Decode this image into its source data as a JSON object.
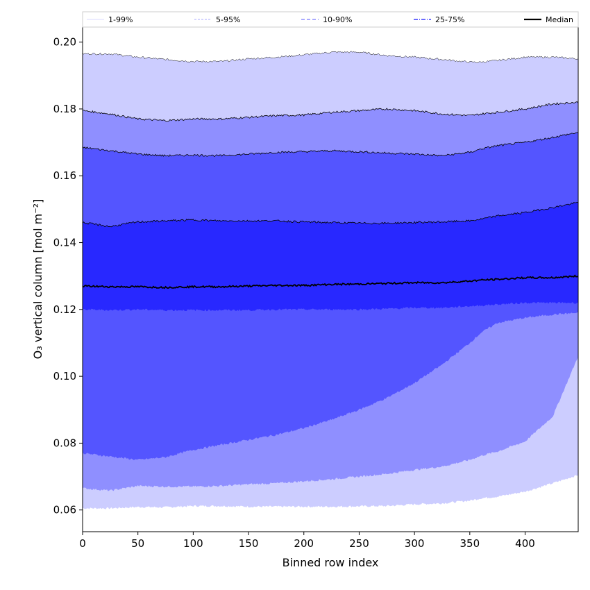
{
  "chart_data": {
    "type": "area",
    "title": "",
    "xlabel": "Binned row index",
    "ylabel": "O₃ vertical column [mol m⁻²]",
    "xlim": [
      0,
      448
    ],
    "ylim": [
      0.0535,
      0.2045
    ],
    "xticks": [
      0,
      50,
      100,
      150,
      200,
      250,
      300,
      350,
      400
    ],
    "yticks": [
      0.06,
      0.08,
      0.1,
      0.12,
      0.14,
      0.16,
      0.18,
      0.2
    ],
    "grid": false,
    "legend_position": "top",
    "x": [
      0,
      25,
      50,
      75,
      100,
      125,
      150,
      175,
      200,
      225,
      250,
      275,
      300,
      325,
      350,
      360,
      375,
      400,
      425,
      448
    ],
    "bands": [
      {
        "name": "1-99%",
        "color": "#cccdff",
        "lower": [
          0.0605,
          0.0605,
          0.0609,
          0.0608,
          0.0612,
          0.0612,
          0.061,
          0.061,
          0.061,
          0.061,
          0.0611,
          0.0612,
          0.0617,
          0.062,
          0.0628,
          0.0635,
          0.064,
          0.0655,
          0.068,
          0.0705
        ],
        "upper": [
          0.1965,
          0.1965,
          0.1955,
          0.1948,
          0.1942,
          0.1942,
          0.195,
          0.1955,
          0.1962,
          0.197,
          0.197,
          0.196,
          0.1955,
          0.1948,
          0.194,
          0.194,
          0.1945,
          0.1955,
          0.1955,
          0.195
        ]
      },
      {
        "name": "5-95%",
        "color": "#8f8fff",
        "lower": [
          0.0665,
          0.0658,
          0.0672,
          0.067,
          0.067,
          0.0672,
          0.0677,
          0.068,
          0.0686,
          0.0692,
          0.07,
          0.0708,
          0.072,
          0.073,
          0.075,
          0.0762,
          0.0775,
          0.0805,
          0.088,
          0.106
        ],
        "upper": [
          0.1795,
          0.1785,
          0.177,
          0.1765,
          0.177,
          0.177,
          0.1775,
          0.178,
          0.1782,
          0.179,
          0.1795,
          0.18,
          0.1795,
          0.1785,
          0.178,
          0.1785,
          0.179,
          0.18,
          0.1815,
          0.182
        ]
      },
      {
        "name": "10-90%",
        "color": "#5455ff",
        "lower": [
          0.077,
          0.076,
          0.075,
          0.0758,
          0.078,
          0.0795,
          0.081,
          0.0825,
          0.0845,
          0.087,
          0.09,
          0.0935,
          0.098,
          0.1035,
          0.11,
          0.113,
          0.116,
          0.1175,
          0.1185,
          0.119
        ],
        "upper": [
          0.1685,
          0.1675,
          0.1665,
          0.166,
          0.1662,
          0.166,
          0.1665,
          0.167,
          0.1672,
          0.1675,
          0.1672,
          0.1668,
          0.1665,
          0.166,
          0.167,
          0.168,
          0.169,
          0.17,
          0.1715,
          0.173
        ]
      },
      {
        "name": "25-75%",
        "color": "#2828ff",
        "lower": [
          0.12,
          0.1198,
          0.12,
          0.1198,
          0.1198,
          0.1198,
          0.1198,
          0.12,
          0.12,
          0.12,
          0.12,
          0.1202,
          0.1205,
          0.1205,
          0.121,
          0.1212,
          0.1215,
          0.122,
          0.122,
          0.122
        ],
        "upper": [
          0.146,
          0.1448,
          0.1462,
          0.1465,
          0.1468,
          0.1465,
          0.1465,
          0.1465,
          0.1462,
          0.146,
          0.1458,
          0.1458,
          0.146,
          0.1462,
          0.1465,
          0.147,
          0.148,
          0.149,
          0.1505,
          0.152
        ]
      }
    ],
    "median": {
      "name": "Median",
      "color": "#000000",
      "values": [
        0.127,
        0.1268,
        0.1268,
        0.1266,
        0.1268,
        0.1268,
        0.127,
        0.1272,
        0.1272,
        0.1275,
        0.1276,
        0.1278,
        0.128,
        0.128,
        0.1285,
        0.1288,
        0.129,
        0.1295,
        0.1295,
        0.13
      ]
    },
    "legend": [
      {
        "label": "1-99%",
        "style": "thin-solid",
        "color": "#cccdff"
      },
      {
        "label": "5-95%",
        "style": "thin-dashed",
        "color": "#8f8fff"
      },
      {
        "label": "10-90%",
        "style": "dashed",
        "color": "#7878ff"
      },
      {
        "label": "25-75%",
        "style": "dash-dot",
        "color": "#3c3cff"
      },
      {
        "label": "Median",
        "style": "solid-thick",
        "color": "#000000"
      }
    ]
  }
}
